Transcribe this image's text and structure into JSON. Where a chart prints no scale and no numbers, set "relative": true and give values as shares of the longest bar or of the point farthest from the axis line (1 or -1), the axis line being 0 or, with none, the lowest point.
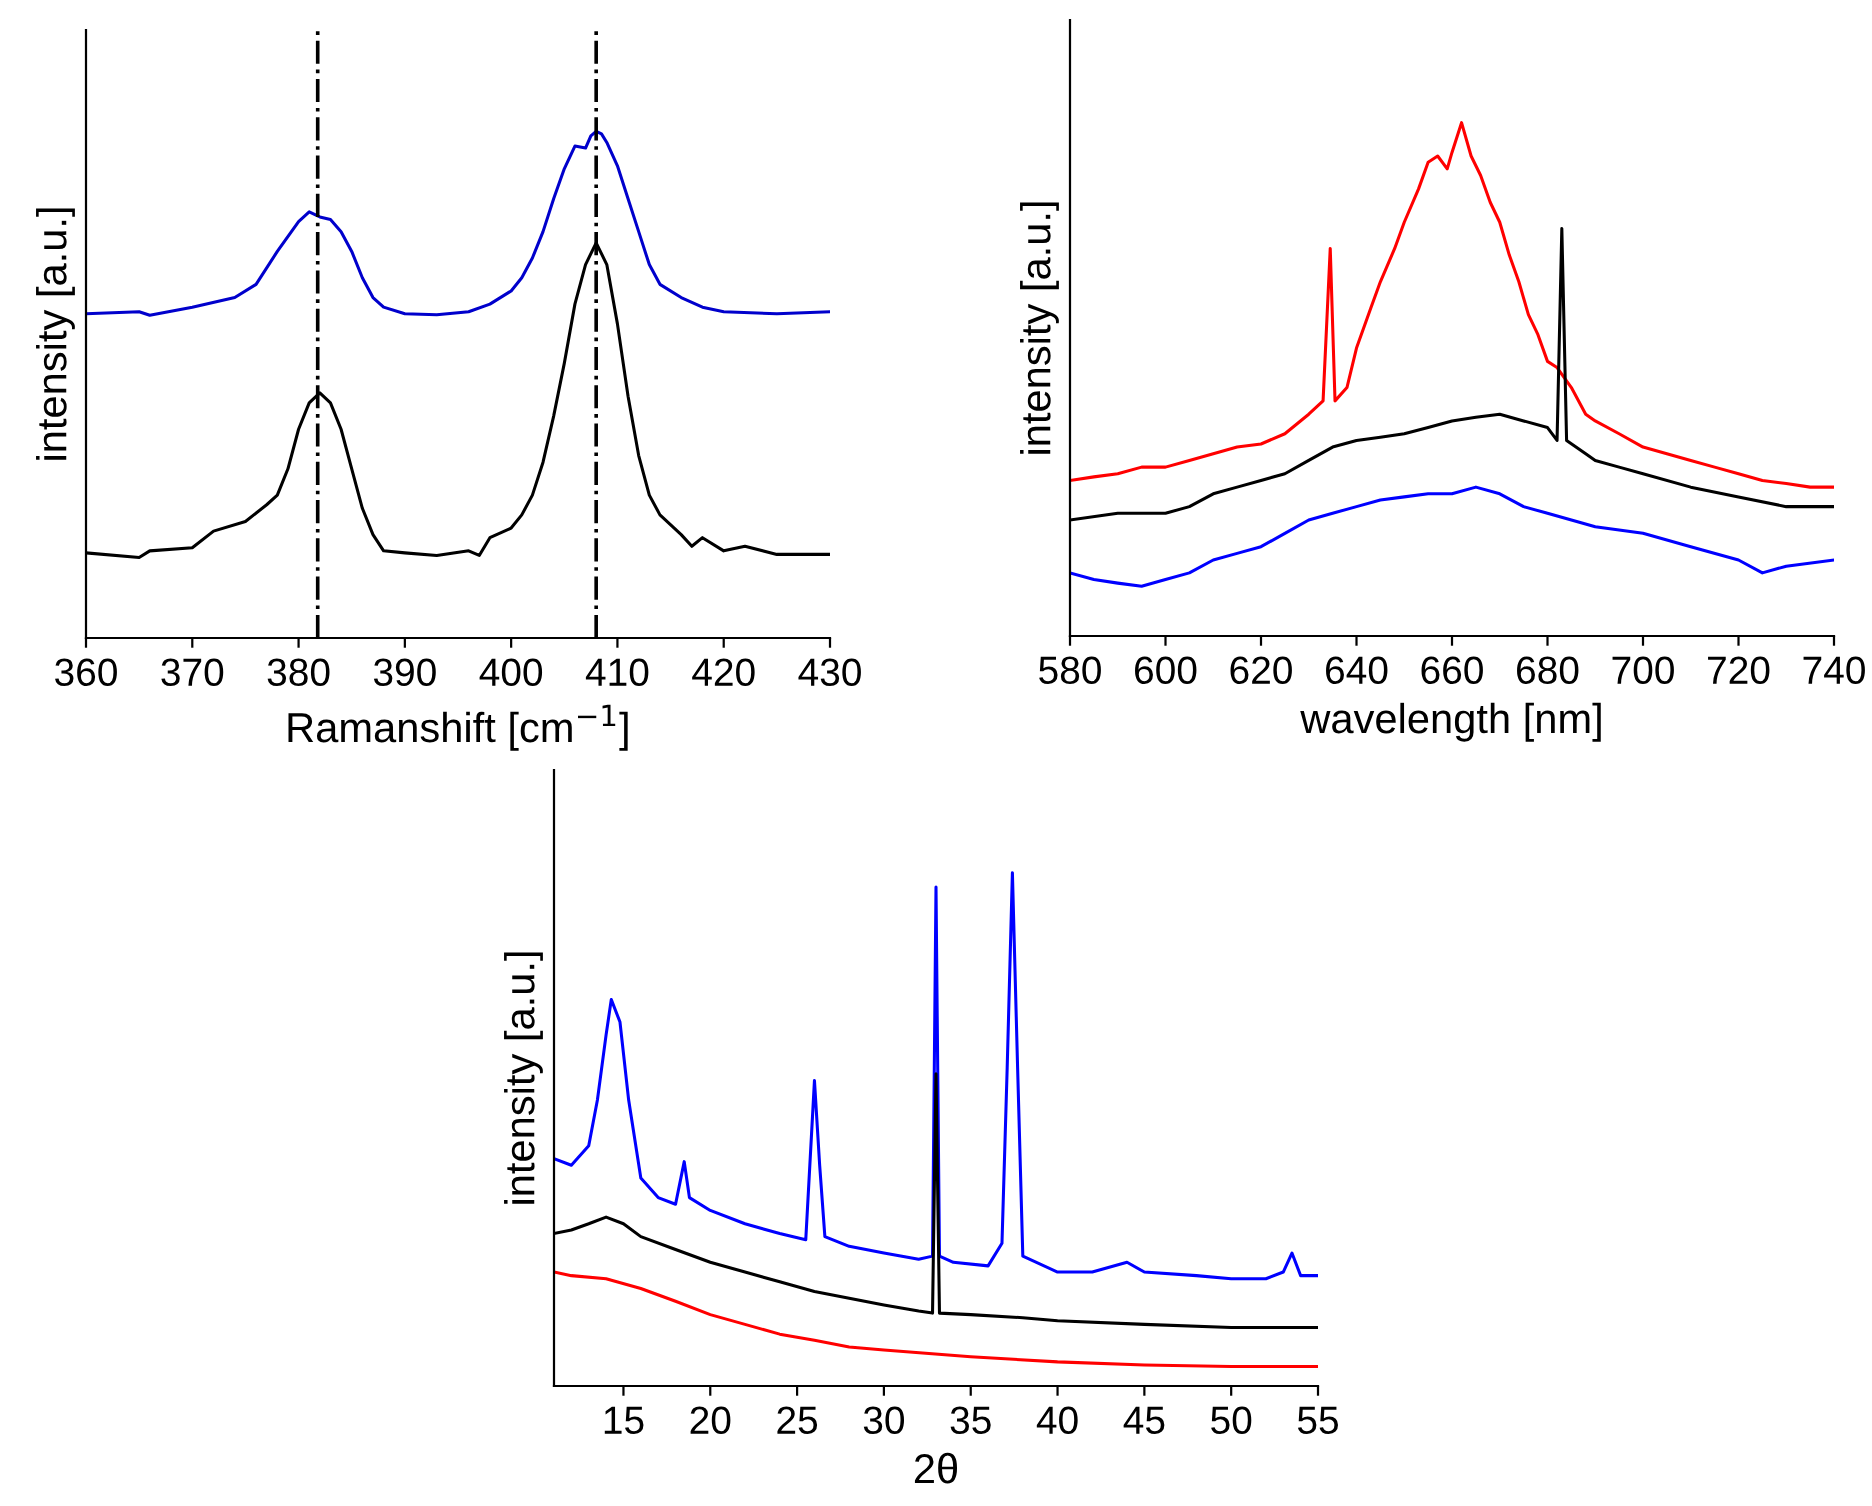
{
  "chart_data": [
    {
      "type": "line",
      "relative": true,
      "xlabel": "Ramanshift [cm$^{−1}$]",
      "ylabel": "intensity [a.u.]",
      "xlim": [
        360,
        430
      ],
      "xticks": [
        360,
        370,
        380,
        390,
        400,
        410,
        420,
        430
      ],
      "grid": false,
      "legend": false,
      "ref_lines": [
        {
          "axis": "x",
          "value": 381.8,
          "color": "#000000",
          "line_style": "dashdot"
        },
        {
          "axis": "x",
          "value": 408,
          "color": "#000000",
          "line_style": "dashdot"
        }
      ],
      "series": [
        {
          "color": "#0000cc",
          "x": [
            360,
            365,
            366,
            370,
            374,
            376,
            378,
            380,
            381,
            382,
            383,
            384,
            385,
            386,
            387,
            388,
            390,
            393,
            396,
            398,
            400,
            401,
            402,
            403,
            404,
            405,
            406,
            407,
            407.5,
            408,
            408.5,
            409,
            410,
            411,
            412,
            413,
            414,
            416,
            418,
            420,
            425,
            430
          ],
          "values": [
            0.64,
            0.644,
            0.637,
            0.653,
            0.672,
            0.698,
            0.763,
            0.822,
            0.841,
            0.831,
            0.826,
            0.802,
            0.763,
            0.711,
            0.672,
            0.653,
            0.64,
            0.638,
            0.644,
            0.659,
            0.685,
            0.711,
            0.75,
            0.802,
            0.867,
            0.926,
            0.971,
            0.967,
            0.991,
            1.0,
            0.995,
            0.978,
            0.932,
            0.867,
            0.802,
            0.737,
            0.698,
            0.672,
            0.653,
            0.644,
            0.64,
            0.644
          ]
        },
        {
          "color": "#000000",
          "x": [
            360,
            365,
            366,
            370,
            372,
            375,
            377,
            378,
            379,
            380,
            381,
            382,
            383,
            384,
            385,
            386,
            387,
            388,
            390,
            393,
            396,
            397,
            398,
            400,
            401,
            402,
            403,
            404,
            405,
            406,
            407,
            408,
            409,
            410,
            411,
            412,
            413,
            414,
            416,
            417,
            418,
            420,
            422,
            425,
            430
          ],
          "values": [
            0.168,
            0.159,
            0.172,
            0.178,
            0.211,
            0.23,
            0.263,
            0.282,
            0.334,
            0.412,
            0.464,
            0.484,
            0.464,
            0.412,
            0.334,
            0.256,
            0.204,
            0.172,
            0.168,
            0.163,
            0.172,
            0.163,
            0.198,
            0.217,
            0.243,
            0.282,
            0.347,
            0.438,
            0.542,
            0.659,
            0.737,
            0.78,
            0.737,
            0.62,
            0.477,
            0.36,
            0.282,
            0.243,
            0.204,
            0.181,
            0.198,
            0.172,
            0.181,
            0.165,
            0.165
          ]
        }
      ]
    },
    {
      "type": "line",
      "relative": true,
      "xlabel": "wavelength [nm]",
      "ylabel": "intensity [a.u.]",
      "xlim": [
        580,
        740
      ],
      "xticks": [
        580,
        600,
        620,
        640,
        660,
        680,
        700,
        720,
        740
      ],
      "grid": false,
      "legend": false,
      "series": [
        {
          "color": "#ff0000",
          "x": [
            580,
            585,
            590,
            595,
            600,
            605,
            610,
            615,
            620,
            625,
            630,
            633,
            634.5,
            635.5,
            638,
            640,
            643,
            645,
            648,
            650,
            653,
            655,
            657,
            659,
            660,
            662,
            664,
            666,
            668,
            670,
            672,
            674,
            676,
            678,
            680,
            682,
            685,
            688,
            690,
            695,
            700,
            705,
            710,
            715,
            720,
            725,
            730,
            735,
            740
          ],
          "values": [
            0.303,
            0.31,
            0.316,
            0.329,
            0.329,
            0.342,
            0.355,
            0.368,
            0.374,
            0.394,
            0.432,
            0.458,
            0.755,
            0.458,
            0.484,
            0.561,
            0.639,
            0.69,
            0.755,
            0.806,
            0.871,
            0.923,
            0.935,
            0.91,
            0.942,
            1.0,
            0.935,
            0.897,
            0.845,
            0.806,
            0.742,
            0.69,
            0.626,
            0.587,
            0.535,
            0.523,
            0.484,
            0.432,
            0.419,
            0.394,
            0.368,
            0.355,
            0.342,
            0.329,
            0.316,
            0.303,
            0.297,
            0.29,
            0.29
          ]
        },
        {
          "color": "#000000",
          "x": [
            580,
            590,
            600,
            605,
            610,
            615,
            620,
            625,
            630,
            635,
            640,
            645,
            650,
            655,
            660,
            665,
            670,
            675,
            680,
            682,
            683,
            684,
            688,
            690,
            695,
            700,
            710,
            720,
            730,
            740
          ],
          "values": [
            0.226,
            0.239,
            0.239,
            0.252,
            0.277,
            0.29,
            0.303,
            0.316,
            0.342,
            0.368,
            0.381,
            0.387,
            0.394,
            0.406,
            0.419,
            0.426,
            0.432,
            0.419,
            0.406,
            0.381,
            0.794,
            0.381,
            0.355,
            0.342,
            0.329,
            0.316,
            0.29,
            0.271,
            0.252,
            0.252
          ]
        },
        {
          "color": "#0000ff",
          "x": [
            580,
            585,
            590,
            595,
            600,
            605,
            610,
            615,
            620,
            625,
            630,
            635,
            640,
            645,
            650,
            655,
            660,
            665,
            670,
            675,
            680,
            685,
            690,
            700,
            710,
            720,
            725,
            730,
            740
          ],
          "values": [
            0.123,
            0.11,
            0.103,
            0.097,
            0.11,
            0.123,
            0.148,
            0.161,
            0.174,
            0.2,
            0.226,
            0.239,
            0.252,
            0.265,
            0.271,
            0.277,
            0.277,
            0.29,
            0.277,
            0.252,
            0.239,
            0.226,
            0.213,
            0.2,
            0.174,
            0.148,
            0.123,
            0.136,
            0.148
          ]
        }
      ]
    },
    {
      "type": "line",
      "relative": true,
      "xlabel": "2θ",
      "ylabel": "intensity [a.u.]",
      "xlim": [
        11,
        55
      ],
      "xticks": [
        15,
        20,
        25,
        30,
        35,
        40,
        45,
        50,
        55
      ],
      "grid": false,
      "legend": false,
      "series": [
        {
          "color": "#0000ff",
          "x": [
            11,
            12,
            13,
            13.5,
            14,
            14.3,
            14.8,
            15.3,
            16,
            17,
            18,
            18.5,
            18.8,
            20,
            22,
            24,
            25.5,
            26,
            26.3,
            26.6,
            28,
            30,
            32,
            32.8,
            33,
            33.2,
            34,
            36,
            36.8,
            37.1,
            37.4,
            37.7,
            38,
            40,
            42,
            44,
            45,
            48,
            50,
            52,
            53,
            53.5,
            54,
            55
          ],
          "values": [
            0.443,
            0.43,
            0.468,
            0.557,
            0.684,
            0.753,
            0.709,
            0.557,
            0.405,
            0.367,
            0.354,
            0.437,
            0.367,
            0.342,
            0.316,
            0.297,
            0.285,
            0.595,
            0.43,
            0.291,
            0.272,
            0.259,
            0.247,
            0.253,
            0.972,
            0.253,
            0.241,
            0.234,
            0.278,
            0.62,
            1.0,
            0.62,
            0.253,
            0.222,
            0.222,
            0.241,
            0.222,
            0.215,
            0.209,
            0.209,
            0.222,
            0.259,
            0.215,
            0.215
          ]
        },
        {
          "color": "#000000",
          "x": [
            11,
            12,
            13,
            14,
            15,
            16,
            18,
            20,
            22,
            24,
            26,
            28,
            30,
            32,
            32.8,
            33,
            33.2,
            35,
            38,
            40,
            45,
            50,
            55
          ],
          "values": [
            0.297,
            0.304,
            0.316,
            0.329,
            0.316,
            0.291,
            0.266,
            0.241,
            0.222,
            0.203,
            0.184,
            0.171,
            0.158,
            0.146,
            0.142,
            0.608,
            0.142,
            0.139,
            0.133,
            0.127,
            0.12,
            0.114,
            0.114
          ]
        },
        {
          "color": "#ff0000",
          "x": [
            11,
            12,
            14,
            16,
            18,
            20,
            22,
            24,
            26,
            28,
            30,
            35,
            40,
            45,
            50,
            55
          ],
          "values": [
            0.222,
            0.215,
            0.209,
            0.19,
            0.165,
            0.139,
            0.12,
            0.101,
            0.089,
            0.076,
            0.07,
            0.057,
            0.047,
            0.041,
            0.038,
            0.038
          ]
        }
      ]
    }
  ]
}
